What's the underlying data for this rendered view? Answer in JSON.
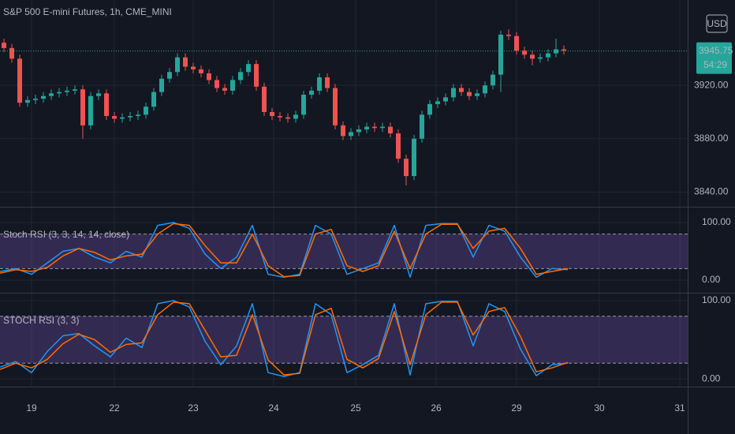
{
  "chart_data": [
    {
      "type": "candlestick",
      "title": "S&P 500 E-mini Futures, 1h, CME_MINI",
      "currency": "USD",
      "last_price": 3945.75,
      "countdown": "54:29",
      "up_color": "#26a69a",
      "down_color": "#ef5350",
      "open": [
        3952,
        3948,
        3940,
        3907,
        3909,
        3910,
        3912,
        3914,
        3915,
        3916,
        3917,
        3890,
        3912,
        3914,
        3897,
        3895,
        3896,
        3897,
        3898,
        3904,
        3915,
        3925,
        3930,
        3941,
        3934,
        3932,
        3929,
        3924,
        3918,
        3916,
        3924,
        3930,
        3936,
        3919,
        3900,
        3897,
        3896,
        3895,
        3898,
        3913,
        3916,
        3926,
        3918,
        3890,
        3882,
        3885,
        3887,
        3889,
        3888,
        3889,
        3884,
        3865,
        3852,
        3880,
        3898,
        3906,
        3908,
        3911,
        3918,
        3915,
        3912,
        3914,
        3920,
        3928,
        3958,
        3957,
        3946,
        3943,
        3940,
        3941,
        3944,
        3947
      ],
      "high": [
        3955,
        3951,
        3943,
        3912,
        3913,
        3915,
        3917,
        3918,
        3919,
        3920,
        3920,
        3915,
        3917,
        3917,
        3900,
        3899,
        3900,
        3901,
        3907,
        3918,
        3928,
        3933,
        3944,
        3944,
        3937,
        3935,
        3932,
        3927,
        3921,
        3927,
        3933,
        3939,
        3939,
        3922,
        3903,
        3900,
        3899,
        3901,
        3916,
        3919,
        3929,
        3929,
        3921,
        3893,
        3888,
        3890,
        3892,
        3892,
        3892,
        3892,
        3887,
        3868,
        3883,
        3901,
        3909,
        3911,
        3914,
        3921,
        3921,
        3918,
        3917,
        3923,
        3931,
        3961,
        3962,
        3960,
        3949,
        3946,
        3944,
        3947,
        3955,
        3950
      ],
      "low": [
        3945,
        3937,
        3904,
        3904,
        3906,
        3907,
        3909,
        3911,
        3912,
        3913,
        3880,
        3887,
        3909,
        3894,
        3892,
        3892,
        3893,
        3894,
        3895,
        3901,
        3912,
        3922,
        3927,
        3931,
        3929,
        3926,
        3921,
        3915,
        3913,
        3913,
        3921,
        3927,
        3916,
        3897,
        3894,
        3893,
        3892,
        3892,
        3895,
        3910,
        3913,
        3915,
        3887,
        3879,
        3879,
        3882,
        3884,
        3885,
        3885,
        3881,
        3862,
        3845,
        3849,
        3877,
        3895,
        3903,
        3905,
        3908,
        3912,
        3909,
        3909,
        3911,
        3917,
        3915,
        3954,
        3943,
        3940,
        3935,
        3937,
        3938,
        3941,
        3943
      ],
      "close": [
        3948,
        3940,
        3907,
        3909,
        3910,
        3912,
        3914,
        3915,
        3916,
        3917,
        3890,
        3912,
        3914,
        3897,
        3895,
        3896,
        3897,
        3898,
        3904,
        3915,
        3925,
        3930,
        3941,
        3934,
        3932,
        3929,
        3924,
        3918,
        3916,
        3924,
        3930,
        3936,
        3919,
        3900,
        3897,
        3896,
        3895,
        3898,
        3913,
        3916,
        3926,
        3918,
        3890,
        3882,
        3885,
        3887,
        3889,
        3888,
        3889,
        3884,
        3865,
        3852,
        3880,
        3898,
        3906,
        3908,
        3911,
        3918,
        3915,
        3912,
        3914,
        3920,
        3928,
        3958,
        3957,
        3946,
        3943,
        3940,
        3941,
        3944,
        3947,
        3946
      ],
      "ylim": [
        3829,
        3984
      ],
      "yticks": [
        {
          "value": 3840,
          "label": "3840.00"
        },
        {
          "value": 3880,
          "label": "3880.00"
        },
        {
          "value": 3920,
          "label": "3920.00"
        }
      ],
      "xlim": [
        -0.5,
        86.7
      ],
      "xticks": [
        {
          "value": 3.5,
          "label": "19"
        },
        {
          "value": 14,
          "label": "22"
        },
        {
          "value": 24,
          "label": "23"
        },
        {
          "value": 34.2,
          "label": "24"
        },
        {
          "value": 44.6,
          "label": "25"
        },
        {
          "value": 54.8,
          "label": "26"
        },
        {
          "value": 65,
          "label": "29"
        },
        {
          "value": 75.5,
          "label": "30"
        },
        {
          "value": 85.7,
          "label": "31"
        }
      ],
      "grid": true
    },
    {
      "type": "line",
      "title": "Stoch RSI (3, 3, 14, 14, close)",
      "ylim": [
        -22,
        126
      ],
      "xlim": [
        0,
        43.6
      ],
      "yticks": [
        {
          "value": 0,
          "label": "0.00"
        },
        {
          "value": 100,
          "label": "100.00"
        }
      ],
      "bands": [
        20,
        80
      ],
      "band_color": "#7e57c2",
      "series": [
        {
          "color": "#2196f3",
          "values": [
            15,
            20,
            10,
            30,
            50,
            55,
            40,
            30,
            50,
            40,
            95,
            100,
            90,
            45,
            20,
            40,
            95,
            10,
            5,
            10,
            95,
            80,
            10,
            20,
            30,
            95,
            5,
            95,
            98,
            98,
            40,
            95,
            85,
            40,
            5,
            20,
            18
          ]
        },
        {
          "color": "#ff6d00",
          "values": [
            12,
            18,
            15,
            22,
            42,
            55,
            48,
            35,
            42,
            45,
            80,
            98,
            95,
            60,
            30,
            30,
            80,
            25,
            6,
            8,
            80,
            88,
            25,
            15,
            25,
            85,
            20,
            80,
            97,
            97,
            55,
            85,
            90,
            55,
            10,
            15,
            20
          ]
        }
      ]
    },
    {
      "type": "line",
      "title": "STOCH RSI (3, 3)",
      "ylim": [
        -10,
        109
      ],
      "xlim": [
        0,
        43.6
      ],
      "yticks": [
        {
          "value": 0,
          "label": "0.00"
        },
        {
          "value": 100,
          "label": "100.00"
        }
      ],
      "bands": [
        20,
        80
      ],
      "band_color": "#7e57c2",
      "series": [
        {
          "color": "#2196f3",
          "values": [
            15,
            22,
            8,
            35,
            55,
            58,
            42,
            28,
            52,
            40,
            96,
            100,
            92,
            48,
            18,
            42,
            96,
            8,
            3,
            8,
            96,
            82,
            8,
            18,
            30,
            96,
            5,
            96,
            99,
            99,
            42,
            96,
            86,
            38,
            4,
            18,
            20
          ]
        },
        {
          "color": "#ff6d00",
          "values": [
            12,
            20,
            14,
            25,
            45,
            57,
            50,
            34,
            44,
            46,
            82,
            98,
            96,
            62,
            28,
            30,
            82,
            24,
            5,
            7,
            82,
            90,
            25,
            14,
            26,
            86,
            18,
            82,
            98,
            98,
            56,
            86,
            91,
            54,
            9,
            14,
            21
          ]
        }
      ]
    }
  ]
}
